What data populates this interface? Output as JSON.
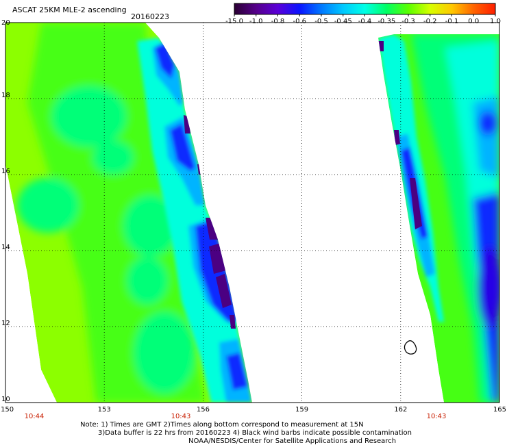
{
  "header": {
    "title": "ASCAT 25KM MLE-2 ascending",
    "date": "20160223"
  },
  "colorbar": {
    "labels": [
      "-15.0",
      "-1.0",
      "-0.8",
      "-0.6",
      "-0.5",
      "-0.45",
      "-0.4",
      "-0.35",
      "-0.3",
      "-0.2",
      "-0.1",
      "0.0",
      "1.0"
    ],
    "colors": [
      "#2a0033",
      "#55008a",
      "#5a00d8",
      "#0a14ff",
      "#0078ff",
      "#00c8ff",
      "#00ffe6",
      "#00ff64",
      "#5aff00",
      "#d7ff00",
      "#ffc800",
      "#ff6400",
      "#ff1e00"
    ]
  },
  "map": {
    "lon_ticks": [
      "150",
      "153",
      "156",
      "159",
      "162",
      "165"
    ],
    "lat_ticks": [
      "20",
      "18",
      "16",
      "14",
      "12",
      "10"
    ],
    "times": [
      "10:44",
      "10:43",
      "10:43"
    ],
    "time_color": "#c81e00",
    "swath_colors": {
      "yellow_green": "#8cff00",
      "green": "#46ff14",
      "aqua_green": "#00ff78",
      "cyan": "#00ffdc",
      "light_blue": "#00b4ff",
      "blue": "#0a2aff",
      "deep_blue": "#2800e6",
      "purple": "#4b0082"
    }
  },
  "notes": {
    "line1": "Note: 1) Times are GMT 2)Times along bottom correspond to measurement at 15N",
    "line2": "3)Data buffer is 22 hrs from 20160223 4) Black wind barbs indicate possible contamination",
    "line3": "NOAA/NESDIS/Center for Satellite Applications and Research"
  }
}
